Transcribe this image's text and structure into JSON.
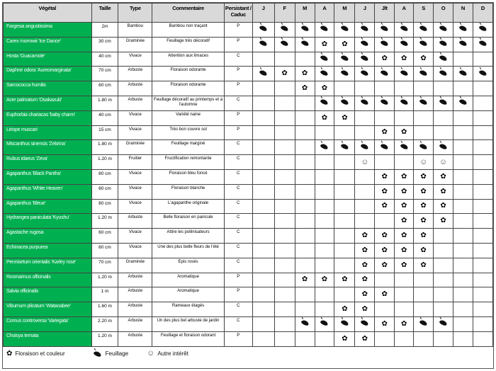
{
  "headers": {
    "plant": "Végétal",
    "size": "Taille",
    "type": "Type",
    "comment": "Commentaire",
    "persistence": "Persistant / Caduc",
    "months": [
      "J",
      "F",
      "M",
      "A",
      "M",
      "J",
      "Jlt",
      "A",
      "S",
      "O",
      "N",
      "D"
    ]
  },
  "icons": {
    "L": "leaf-icon",
    "F": "flower-icon",
    "S": "smiley-icon"
  },
  "colors": {
    "plant_cell": "#00b050",
    "header": "#d9d9d9"
  },
  "rows": [
    {
      "name": "Fargesia angustissima",
      "size": "2m",
      "type": "Bambou",
      "comment": "Bambou non traçant",
      "persistence": "P",
      "months": [
        "L",
        "L",
        "L",
        "L",
        "L",
        "L",
        "L",
        "L",
        "L",
        "L",
        "L",
        "L"
      ]
    },
    {
      "name": "Carex morrowii 'Ice Dance'",
      "size": "30 cm",
      "type": "Graminée",
      "comment": "Feuillage très décoratif",
      "persistence": "P",
      "months": [
        "L",
        "L",
        "L",
        "F",
        "F",
        "L",
        "L",
        "L",
        "L",
        "L",
        "L",
        "L"
      ]
    },
    {
      "name": "Hosta 'Guacamole'",
      "size": "40 cm",
      "type": "Vivace",
      "comment": "Attention aux limaces",
      "persistence": "C",
      "months": [
        "",
        "",
        "",
        "L",
        "L",
        "L",
        "F",
        "F",
        "F",
        "L",
        "",
        ""
      ]
    },
    {
      "name": "Daphne odora 'Aureomarginata'",
      "size": "70 cm",
      "type": "Arbuste",
      "comment": "Floraison odorante",
      "persistence": "P",
      "months": [
        "L",
        "F",
        "F",
        "L",
        "L",
        "L",
        "L",
        "L",
        "L",
        "L",
        "L",
        "L"
      ]
    },
    {
      "name": "Sarcococca humilis",
      "size": "60 cm",
      "type": "Arbuste",
      "comment": "Floraison odorante",
      "persistence": "P",
      "months": [
        "",
        "",
        "F",
        "F",
        "",
        "",
        "",
        "",
        "",
        "",
        "",
        ""
      ]
    },
    {
      "name": "Acer palmatum 'Osakazuki'",
      "size": "1.80 m",
      "type": "Arbuste",
      "comment": "Feuillage décoratif au printemps et à l'automne",
      "persistence": "C",
      "months": [
        "",
        "",
        "",
        "L",
        "L",
        "L",
        "L",
        "L",
        "L",
        "L",
        "L",
        ""
      ]
    },
    {
      "name": "Euphorbia chariacas 'baby charm'",
      "size": "40 cm",
      "type": "Vivace",
      "comment": "Variété naine",
      "persistence": "P",
      "months": [
        "",
        "",
        "",
        "F",
        "F",
        "",
        "",
        "",
        "",
        "",
        "",
        ""
      ]
    },
    {
      "name": "Liriope muscari",
      "size": "15 cm",
      "type": "Vivace",
      "comment": "Très bon couvre sol",
      "persistence": "P",
      "months": [
        "",
        "",
        "",
        "",
        "",
        "",
        "F",
        "F",
        "",
        "",
        "",
        ""
      ]
    },
    {
      "name": "Miscanthus sinensis 'Zebrina'",
      "size": "1.80 m",
      "type": "Graminée",
      "comment": "Feuillage marginé",
      "persistence": "C",
      "months": [
        "",
        "",
        "",
        "L",
        "L",
        "L",
        "L",
        "L",
        "L",
        "L",
        "",
        ""
      ]
    },
    {
      "name": "Rubus idaeus 'Zeva'",
      "size": "1.20 m",
      "type": "Fruitier",
      "comment": "Fructification remontante",
      "persistence": "C",
      "months": [
        "",
        "",
        "",
        "",
        "",
        "S",
        "",
        "",
        "S",
        "S",
        "",
        ""
      ]
    },
    {
      "name": "Agapanthus 'Black Pantha'",
      "size": "80 cm",
      "type": "Vivace",
      "comment": "Floraison bleu foncé",
      "persistence": "C",
      "months": [
        "",
        "",
        "",
        "",
        "",
        "",
        "F",
        "F",
        "F",
        "F",
        "",
        ""
      ]
    },
    {
      "name": "Agapanthus 'White Heaven'",
      "size": "80 cm",
      "type": "Vivace",
      "comment": "Floraison blanche",
      "persistence": "C",
      "months": [
        "",
        "",
        "",
        "",
        "",
        "",
        "F",
        "F",
        "F",
        "F",
        "",
        ""
      ]
    },
    {
      "name": "Agapanthus 'Bleue'",
      "size": "80 cm",
      "type": "Vivace",
      "comment": "L'agapanthe originale",
      "persistence": "C",
      "months": [
        "",
        "",
        "",
        "",
        "",
        "",
        "F",
        "F",
        "F",
        "F",
        "",
        ""
      ]
    },
    {
      "name": "Hydrangea paniculata 'Kyushu'",
      "size": "1.20 m",
      "type": "Arbuste",
      "comment": "Belle floraison en panicule",
      "persistence": "C",
      "months": [
        "",
        "",
        "",
        "",
        "",
        "",
        "",
        "F",
        "F",
        "F",
        "",
        ""
      ]
    },
    {
      "name": "Agastache rugosa",
      "size": "60 cm",
      "type": "Vivace",
      "comment": "Attire les pollinisateurs",
      "persistence": "C",
      "months": [
        "",
        "",
        "",
        "",
        "",
        "F",
        "F",
        "F",
        "F",
        "",
        "",
        ""
      ]
    },
    {
      "name": "Echinacea purpurea",
      "size": "60 cm",
      "type": "Vivace",
      "comment": "Une des plus belle fleurs de l'été",
      "persistence": "C",
      "months": [
        "",
        "",
        "",
        "",
        "",
        "F",
        "F",
        "F",
        "F",
        "",
        "",
        ""
      ]
    },
    {
      "name": "Pennisetum orientalis 'Karley rose'",
      "size": "70 cm",
      "type": "Graminée",
      "comment": "Epis rosés",
      "persistence": "C",
      "months": [
        "",
        "",
        "",
        "",
        "",
        "F",
        "F",
        "F",
        "F",
        "",
        "",
        ""
      ]
    },
    {
      "name": "Rosmarinus officinalis",
      "size": "1.20 m",
      "type": "Arbuste",
      "comment": "Aromatique",
      "persistence": "P",
      "months": [
        "",
        "",
        "F",
        "F",
        "F",
        "F",
        "",
        "",
        "",
        "",
        "",
        ""
      ]
    },
    {
      "name": "Salvia officinalis",
      "size": "1 m",
      "type": "Arbuste",
      "comment": "Aromatique",
      "persistence": "P",
      "months": [
        "",
        "",
        "",
        "",
        "",
        "F",
        "F",
        "",
        "",
        "",
        "",
        ""
      ]
    },
    {
      "name": "Viburnum plicatum 'Watanabee'",
      "size": "1.60 m",
      "type": "Arbuste",
      "comment": "Rameaux étagés",
      "persistence": "C",
      "months": [
        "",
        "",
        "",
        "",
        "F",
        "F",
        "",
        "",
        "",
        "",
        "",
        ""
      ]
    },
    {
      "name": "Cornus controversa 'Variegata'",
      "size": "2.20 m",
      "type": "Arbuste",
      "comment": "Un des plus bel arbuste de jardin",
      "persistence": "C",
      "months": [
        "",
        "",
        "L",
        "L",
        "L",
        "L",
        "F",
        "F",
        "L",
        "L",
        "",
        ""
      ]
    },
    {
      "name": "Choisya ternata",
      "size": "1.20 m",
      "type": "Arbuste",
      "comment": "Feuillage et floraison odorant",
      "persistence": "P",
      "months": [
        "",
        "",
        "",
        "",
        "F",
        "F",
        "",
        "",
        "",
        "",
        "",
        ""
      ]
    }
  ],
  "legend": {
    "flower": "Floraison et couleur",
    "leaf": "Feuillage",
    "smiley": "Autre intérêt"
  }
}
